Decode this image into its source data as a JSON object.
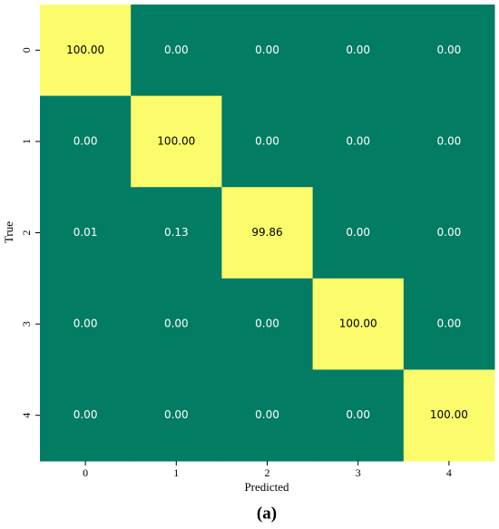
{
  "chart_data": {
    "type": "heatmap",
    "x_label": "Predicted",
    "y_label": "True",
    "caption": "(a)",
    "x_categories": [
      "0",
      "1",
      "2",
      "3",
      "4"
    ],
    "y_categories": [
      "0",
      "1",
      "2",
      "3",
      "4"
    ],
    "values": [
      [
        100,
        0,
        0,
        0,
        0
      ],
      [
        0,
        100,
        0,
        0,
        0
      ],
      [
        0.01,
        0.13,
        99.86,
        0,
        0
      ],
      [
        0,
        0,
        0,
        100,
        0
      ],
      [
        0,
        0,
        0,
        0,
        100
      ]
    ],
    "value_labels": [
      [
        "100.00",
        "0.00",
        "0.00",
        "0.00",
        "0.00"
      ],
      [
        "0.00",
        "100.00",
        "0.00",
        "0.00",
        "0.00"
      ],
      [
        "0.01",
        "0.13",
        "99.86",
        "0.00",
        "0.00"
      ],
      [
        "0.00",
        "0.00",
        "0.00",
        "100.00",
        "0.00"
      ],
      [
        "0.00",
        "0.00",
        "0.00",
        "0.00",
        "100.00"
      ]
    ],
    "colors": [
      "#037c64",
      "#fbfb6c"
    ]
  }
}
